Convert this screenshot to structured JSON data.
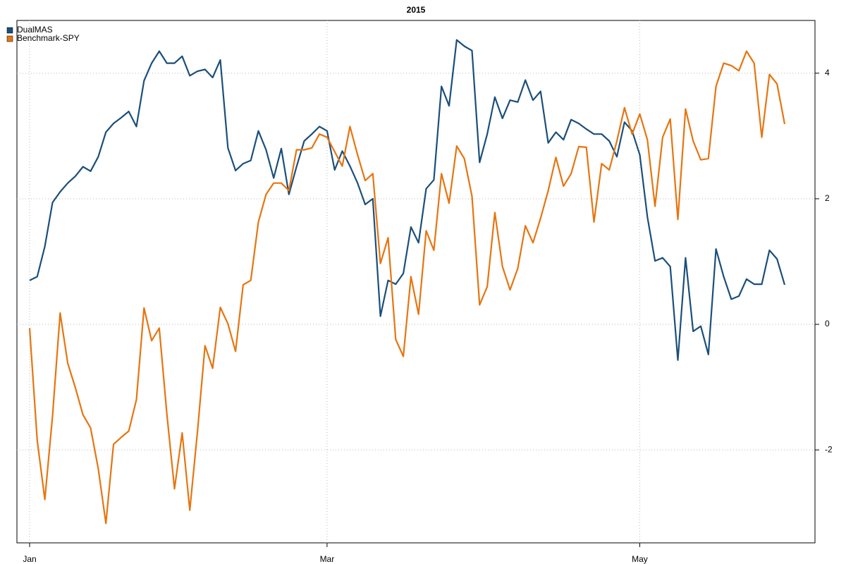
{
  "chart_data": {
    "type": "line",
    "title": "2015",
    "categories": [
      "Jan",
      null,
      null,
      null,
      null,
      null,
      null,
      null,
      null,
      null,
      null,
      null,
      null,
      null,
      null,
      null,
      null,
      null,
      null,
      null,
      null,
      null,
      null,
      null,
      null,
      null,
      null,
      null,
      null,
      null,
      null,
      null,
      null,
      null,
      null,
      null,
      null,
      null,
      null,
      "Mar",
      null,
      null,
      null,
      null,
      null,
      null,
      null,
      null,
      null,
      null,
      null,
      null,
      null,
      null,
      null,
      null,
      null,
      null,
      null,
      null,
      null,
      null,
      null,
      null,
      null,
      null,
      null,
      null,
      null,
      null,
      null,
      null,
      null,
      null,
      null,
      null,
      null,
      null,
      null,
      null,
      "May",
      null,
      null,
      null,
      null,
      null,
      null,
      null,
      null,
      null,
      null,
      null,
      null,
      null,
      null,
      null,
      null,
      null,
      null,
      null
    ],
    "series": [
      {
        "name": "DualMAS",
        "color": "#1b4f7a",
        "values": [
          0.7,
          0.76,
          1.24,
          1.94,
          2.11,
          2.25,
          2.36,
          2.51,
          2.44,
          2.67,
          3.06,
          3.2,
          3.29,
          3.39,
          3.15,
          3.88,
          4.16,
          4.35,
          4.16,
          4.16,
          4.27,
          3.96,
          4.03,
          4.06,
          3.93,
          4.21,
          2.81,
          2.45,
          2.56,
          2.61,
          3.08,
          2.78,
          2.33,
          2.8,
          2.07,
          2.51,
          2.92,
          3.03,
          3.15,
          3.08,
          2.46,
          2.76,
          2.52,
          2.25,
          1.91,
          2.0,
          0.13,
          0.7,
          0.64,
          0.81,
          1.55,
          1.3,
          2.16,
          2.3,
          3.79,
          3.48,
          4.53,
          4.43,
          4.36,
          2.58,
          3.03,
          3.62,
          3.28,
          3.57,
          3.54,
          3.89,
          3.57,
          3.71,
          2.89,
          3.06,
          2.94,
          3.26,
          3.2,
          3.11,
          3.03,
          3.03,
          2.92,
          2.67,
          3.22,
          3.08,
          2.7,
          1.71,
          1.01,
          1.06,
          0.92,
          -0.57,
          1.06,
          -0.11,
          -0.03,
          -0.48,
          1.2,
          0.76,
          0.4,
          0.45,
          0.72,
          0.64,
          0.64,
          1.18,
          1.04,
          0.63
        ]
      },
      {
        "name": "Benchmark-SPY",
        "color": "#e6750f",
        "values": [
          -0.06,
          -1.85,
          -2.79,
          -1.46,
          0.18,
          -0.62,
          -1.01,
          -1.44,
          -1.65,
          -2.3,
          -3.17,
          -1.91,
          -1.8,
          -1.7,
          -1.2,
          0.26,
          -0.26,
          -0.06,
          -1.43,
          -2.62,
          -1.73,
          -2.96,
          -1.72,
          -0.34,
          -0.7,
          0.27,
          0.01,
          -0.43,
          0.63,
          0.7,
          1.63,
          2.07,
          2.25,
          2.25,
          2.13,
          2.78,
          2.78,
          2.81,
          3.03,
          2.98,
          2.75,
          2.52,
          3.15,
          2.7,
          2.29,
          2.4,
          0.97,
          1.38,
          -0.24,
          -0.51,
          0.76,
          0.16,
          1.49,
          1.18,
          2.4,
          1.93,
          2.84,
          2.64,
          2.04,
          0.31,
          0.6,
          1.78,
          0.92,
          0.55,
          0.89,
          1.57,
          1.3,
          1.69,
          2.13,
          2.66,
          2.2,
          2.4,
          2.83,
          2.82,
          1.63,
          2.56,
          2.46,
          2.92,
          3.45,
          3.03,
          3.35,
          2.94,
          1.88,
          2.98,
          3.27,
          1.67,
          3.43,
          2.92,
          2.62,
          2.64,
          3.79,
          4.16,
          4.12,
          4.04,
          4.35,
          4.16,
          2.98,
          3.98,
          3.83,
          3.19
        ]
      }
    ],
    "ylim": [
      -3.48,
      4.84
    ],
    "yticks": [
      -2,
      0,
      2,
      4
    ],
    "grid": true,
    "legend": "top-left"
  }
}
